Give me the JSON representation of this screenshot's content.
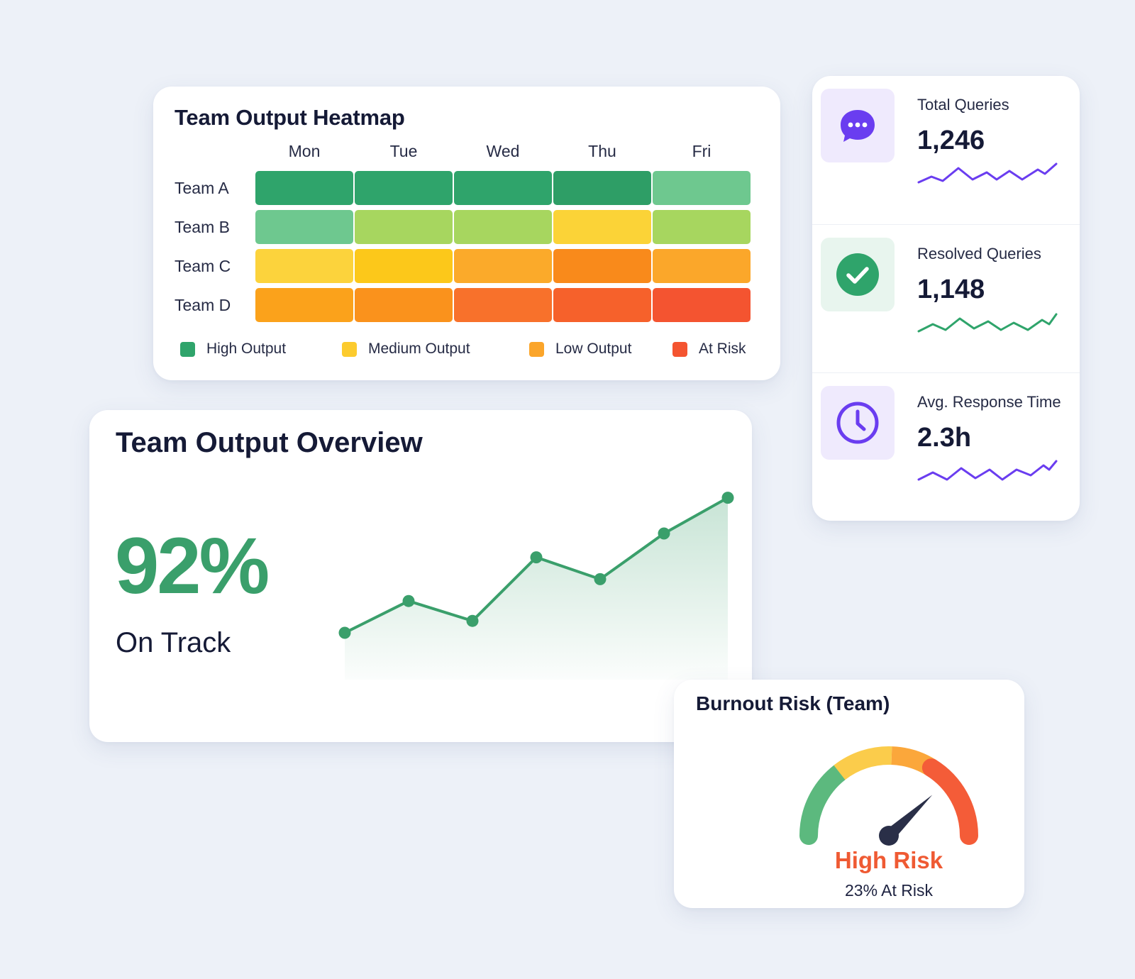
{
  "heatmap": {
    "title": "Team Output Heatmap",
    "days": [
      "Mon",
      "Tue",
      "Wed",
      "Thu",
      "Fri"
    ],
    "teams": [
      "Team A",
      "Team B",
      "Team C",
      "Team D"
    ],
    "cell_colors": [
      [
        "#2fa46b",
        "#2fa46b",
        "#2fa46b",
        "#2e9e66",
        "#6ec88f"
      ],
      [
        "#6ec88f",
        "#a7d65f",
        "#a7d65f",
        "#fbd337",
        "#a7d65f"
      ],
      [
        "#fcd33c",
        "#fcc81a",
        "#fbaa2a",
        "#f98a1b",
        "#fba72a"
      ],
      [
        "#fba21b",
        "#fa921c",
        "#f8712b",
        "#f6612b",
        "#f45430"
      ]
    ],
    "legend": [
      {
        "label": "High Output",
        "color": "#2fa46b"
      },
      {
        "label": "Medium Output",
        "color": "#fccb2e"
      },
      {
        "label": "Low Output",
        "color": "#fba52a"
      },
      {
        "label": "At Risk",
        "color": "#f45430"
      }
    ]
  },
  "stats": [
    {
      "label": "Total Queries",
      "value": "1,246",
      "icon": "chat-bubble-icon",
      "accent": "#6a3df0",
      "box": "#efeafd"
    },
    {
      "label": "Resolved Queries",
      "value": "1,148",
      "icon": "check-circle-icon",
      "accent": "#2fa46b",
      "box": "#e8f5ee"
    },
    {
      "label": "Avg. Response Time",
      "value": "2.3h",
      "icon": "clock-icon",
      "accent": "#6a3df0",
      "box": "#efeafd"
    }
  ],
  "overview": {
    "title": "Team Output Overview",
    "percent": "92%",
    "status": "On Track",
    "accent": "#3a9f6b",
    "chart_data": {
      "type": "area",
      "values": [
        20,
        36,
        26,
        58,
        47,
        70,
        88
      ],
      "ylim": [
        0,
        100
      ]
    }
  },
  "burnout": {
    "title": "Burnout Risk (Team)",
    "risk_label": "High Risk",
    "risk_detail": "23% At Risk",
    "needle_value": 0.76,
    "segments": [
      {
        "color": "#5cb97e"
      },
      {
        "color": "#fbcc4b"
      },
      {
        "color": "#fba73b"
      },
      {
        "color": "#f45c38"
      }
    ]
  }
}
